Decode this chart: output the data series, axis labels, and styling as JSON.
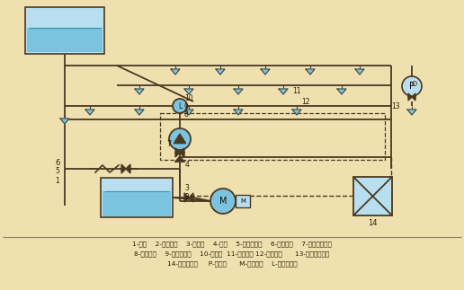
{
  "bg_color": "#f0e0b0",
  "lc": "#4a3820",
  "bc": "#7bc4e0",
  "blc": "#b8dff0",
  "dc": "#4a3820",
  "legend_lines": [
    "1-水池    2-消防水泵    3-止回阀    4-间阀    5-水泵接合器    6-消防水筱    7-湿式报警阀组",
    "8-配水干管    9-水流指示器    10-配水管  11-配水支管 12-闭式嘴头      13-末端试水装置",
    "14-报警控制器     P-压力表      M-驱动电机    L-水流指示器"
  ],
  "figsize": [
    5.16,
    3.23
  ],
  "dpi": 100
}
